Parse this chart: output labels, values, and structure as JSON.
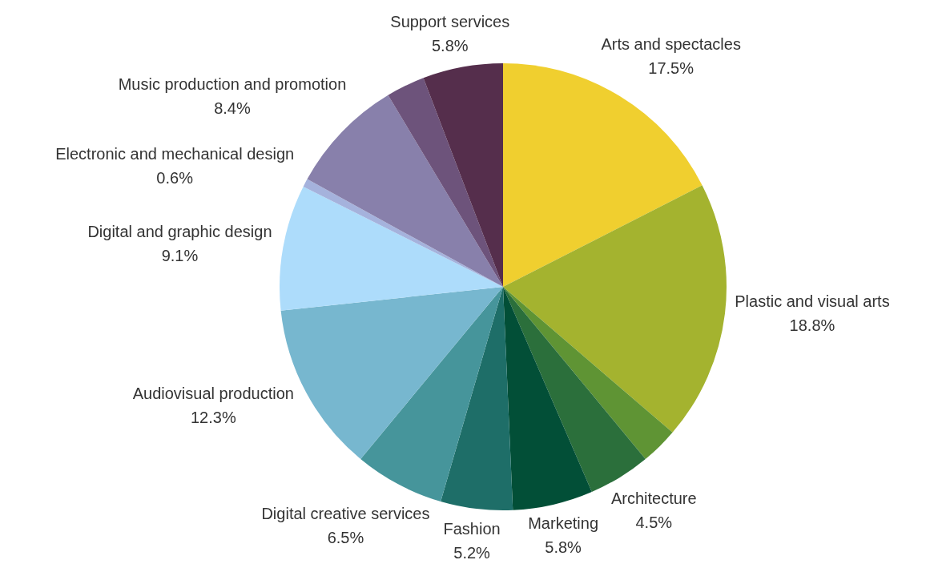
{
  "chart_data": {
    "type": "pie",
    "categories": [
      "Arts and spectacles",
      "Plastic and visual arts",
      null,
      "Architecture",
      "Marketing",
      "Fashion",
      "Digital creative services",
      "Audiovisual production",
      "Digital and graphic design",
      "Electronic and mechanical design",
      "Music production and promotion",
      null,
      "Support services"
    ],
    "values": [
      17.5,
      18.8,
      2.7,
      4.5,
      5.8,
      5.2,
      6.5,
      12.3,
      9.1,
      0.6,
      8.4,
      2.8,
      5.8
    ],
    "value_labels": [
      "17.5%",
      "18.8%",
      null,
      "4.5%",
      "5.8%",
      "5.2%",
      "6.5%",
      "12.3%",
      "9.1%",
      "0.6%",
      "8.4%",
      null,
      "5.8%"
    ],
    "colors": [
      "#f0cf2f",
      "#a4b32f",
      "#5f9434",
      "#2b6f3b",
      "#024f37",
      "#1e6e68",
      "#46959b",
      "#77b7cf",
      "#addcfb",
      "#a5b2dc",
      "#8880ab",
      "#6d537b",
      "#552e4c"
    ],
    "legend": false
  }
}
